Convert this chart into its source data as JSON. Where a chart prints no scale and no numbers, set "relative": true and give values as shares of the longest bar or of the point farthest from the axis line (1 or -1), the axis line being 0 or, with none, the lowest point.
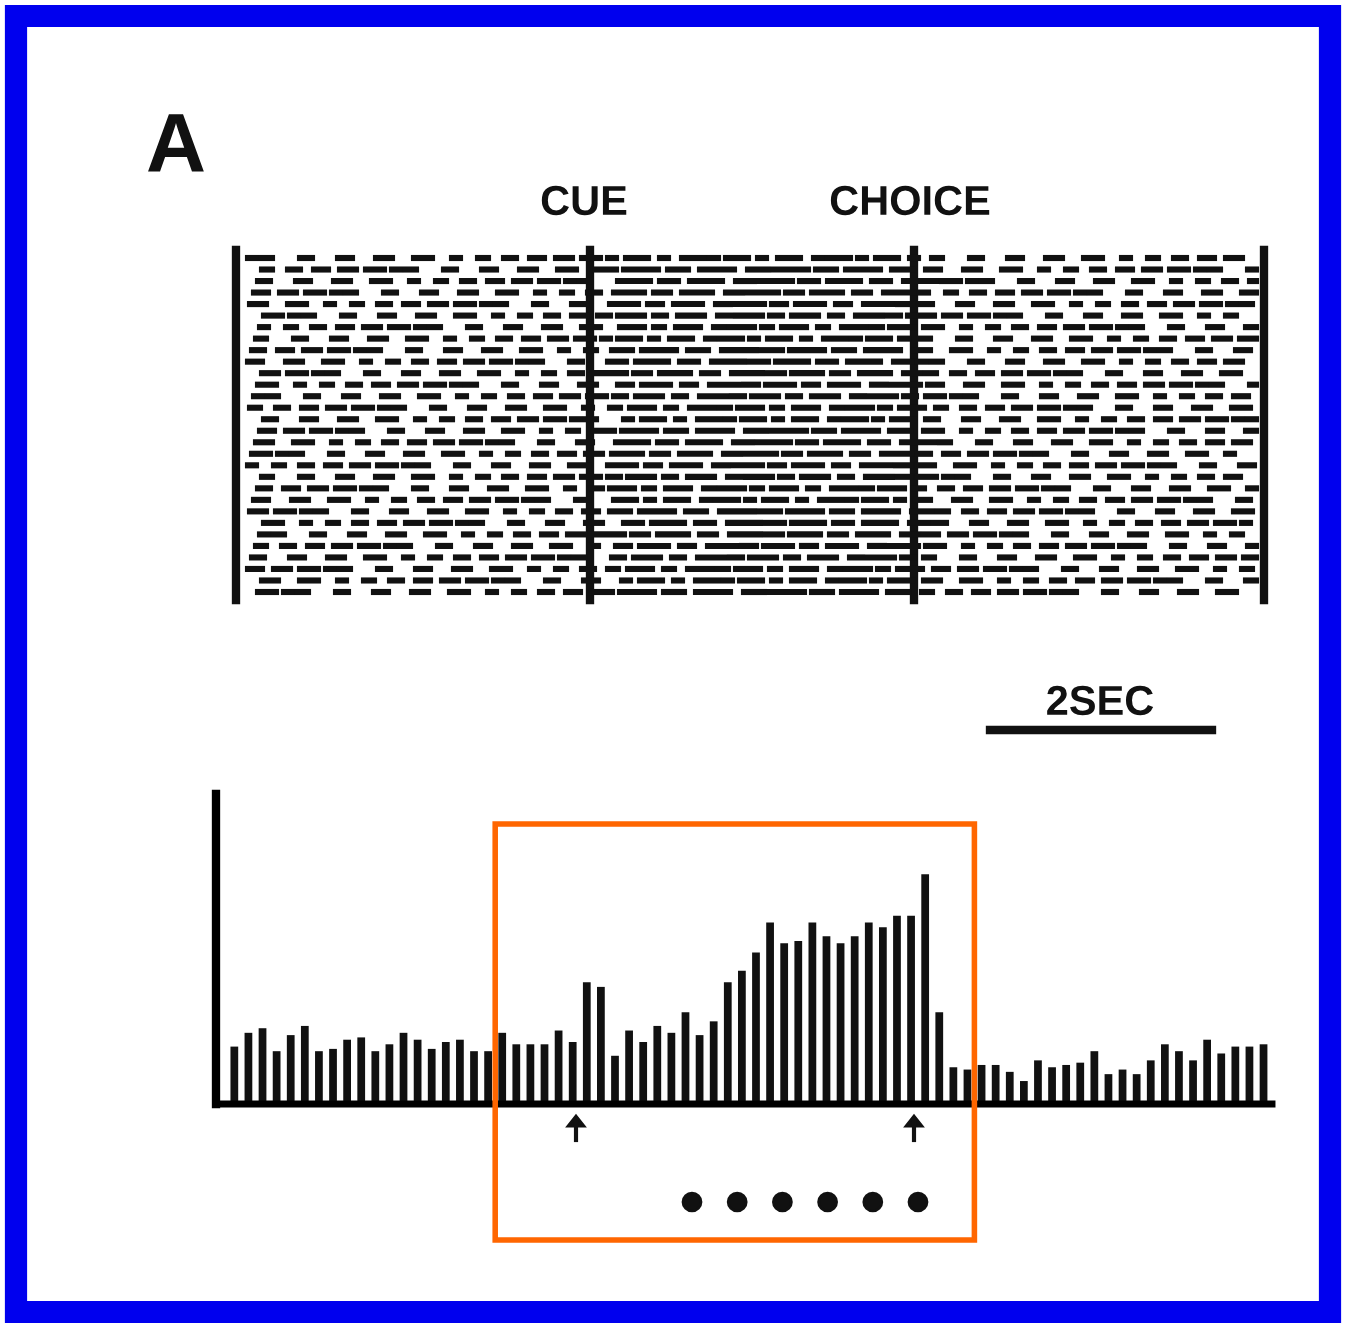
{
  "chart_data": {
    "type": "bar",
    "relative": true,
    "color": "#111111",
    "annotations": [
      "A",
      "CUE",
      "CHOICE",
      "2SEC"
    ],
    "categories": [
      null,
      null,
      null,
      null,
      null,
      null,
      null,
      null,
      null,
      null,
      null,
      null,
      null,
      null,
      null,
      null,
      null,
      null,
      null,
      null,
      null,
      null,
      null,
      null,
      null,
      null,
      null,
      null,
      null,
      null,
      null,
      null,
      null,
      null,
      null,
      null,
      null,
      null,
      null,
      null,
      null,
      null,
      null,
      null,
      null,
      null,
      null,
      null,
      null,
      null,
      null,
      null,
      null,
      null,
      null,
      null,
      null,
      null,
      null,
      null,
      null,
      null,
      null,
      null,
      null,
      null,
      null,
      null,
      null,
      null,
      null,
      null,
      null,
      null
    ],
    "values": [
      0.25,
      0.31,
      0.33,
      0.23,
      0.3,
      0.34,
      0.23,
      0.24,
      0.28,
      0.29,
      0.23,
      0.26,
      0.31,
      0.28,
      0.24,
      0.27,
      0.28,
      0.23,
      0.23,
      0.31,
      0.26,
      0.26,
      0.26,
      0.32,
      0.27,
      0.53,
      0.51,
      0.21,
      0.32,
      0.27,
      0.34,
      0.31,
      0.4,
      0.3,
      0.36,
      0.53,
      0.58,
      0.66,
      0.79,
      0.7,
      0.71,
      0.79,
      0.73,
      0.7,
      0.73,
      0.79,
      0.77,
      0.82,
      0.82,
      1,
      0.4,
      0.16,
      0.15,
      0.17,
      0.17,
      0.14,
      0.1,
      0.19,
      0.16,
      0.17,
      0.18,
      0.23,
      0.13,
      0.15,
      0.13,
      0.19,
      0.26,
      0.23,
      0.19,
      0.28,
      0.22,
      0.25,
      0.25,
      0.26
    ]
  }
}
